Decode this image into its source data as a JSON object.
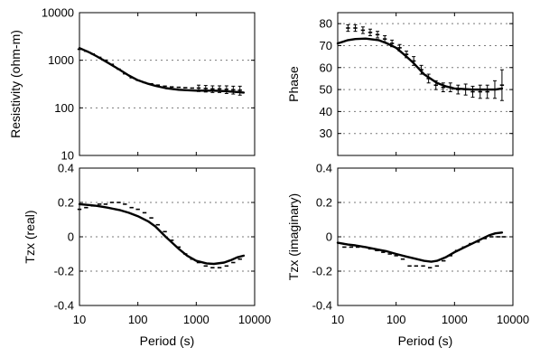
{
  "chart_data": [
    {
      "id": "resistivity",
      "type": "line",
      "ylabel": "Resistivity (ohm-m)",
      "xlabel": "",
      "xscale": "log",
      "yscale": "log",
      "xlim": [
        10,
        10000
      ],
      "ylim": [
        10,
        10000
      ],
      "yticks": [
        10,
        100,
        1000,
        10000
      ],
      "ytick_labels": [
        "10",
        "100",
        "1000",
        "10000"
      ],
      "xticks": [
        10,
        100,
        1000,
        10000
      ],
      "xtick_labels": [],
      "grid": "horizontal dotted",
      "model": {
        "x": [
          10,
          15,
          20,
          30,
          50,
          70,
          100,
          150,
          200,
          300,
          500,
          700,
          1000,
          2000,
          3000,
          5000,
          6500
        ],
        "y": [
          1800,
          1450,
          1200,
          900,
          620,
          480,
          380,
          320,
          290,
          260,
          240,
          235,
          230,
          230,
          225,
          215,
          210
        ]
      },
      "data": {
        "x": [
          10,
          13,
          17,
          22,
          28,
          36,
          47,
          60,
          78,
          100,
          130,
          170,
          220,
          290,
          380,
          500,
          650,
          850,
          1100,
          1450,
          1900,
          2500,
          3300,
          4300,
          5600
        ],
        "y": [
          1700,
          1550,
          1350,
          1150,
          1000,
          820,
          650,
          520,
          430,
          380,
          340,
          320,
          300,
          285,
          275,
          270,
          265,
          260,
          260,
          255,
          250,
          250,
          245,
          240,
          235
        ],
        "err": [
          0,
          0,
          0,
          0,
          0,
          0,
          0,
          0,
          0,
          0,
          0,
          0,
          0,
          0,
          0,
          0,
          0,
          0,
          40,
          40,
          40,
          40,
          45,
          45,
          50
        ]
      }
    },
    {
      "id": "phase",
      "type": "line",
      "ylabel": "Phase",
      "xlabel": "",
      "xscale": "log",
      "yscale": "linear",
      "xlim": [
        10,
        10000
      ],
      "ylim": [
        20,
        85
      ],
      "yticks": [
        30,
        40,
        50,
        60,
        70,
        80
      ],
      "ytick_labels": [
        "30",
        "40",
        "50",
        "60",
        "70",
        "80"
      ],
      "xticks": [
        10,
        100,
        1000,
        10000
      ],
      "xtick_labels": [],
      "grid": "horizontal dotted",
      "model": {
        "x": [
          10,
          15,
          20,
          30,
          50,
          70,
          100,
          150,
          200,
          300,
          500,
          700,
          1000,
          2000,
          3000,
          5000,
          6500
        ],
        "y": [
          71,
          72.5,
          73,
          73.2,
          72.5,
          71,
          69,
          65,
          62,
          57,
          53,
          51.5,
          50.5,
          50,
          50,
          50,
          50.5
        ]
      },
      "data": {
        "x": [
          15,
          20,
          27,
          36,
          48,
          64,
          85,
          115,
          150,
          200,
          270,
          360,
          480,
          640,
          850,
          1150,
          1550,
          2050,
          2750,
          3650,
          4900,
          6500
        ],
        "y": [
          78,
          78,
          77,
          76,
          75,
          73,
          71,
          69,
          66,
          63,
          59,
          55,
          52,
          51,
          51,
          50,
          50,
          49,
          49,
          49,
          50,
          52
        ],
        "err": [
          1.5,
          1.5,
          1.5,
          1.5,
          1.5,
          1.5,
          1.5,
          1.5,
          1.5,
          2,
          2,
          2,
          2,
          2,
          2,
          2,
          2.5,
          2.5,
          3,
          3,
          4,
          7
        ]
      }
    },
    {
      "id": "tzx-real",
      "type": "line",
      "ylabel": "Tzx (real)",
      "xlabel": "Period (s)",
      "xscale": "log",
      "yscale": "linear",
      "xlim": [
        10,
        10000
      ],
      "ylim": [
        -0.4,
        0.4
      ],
      "yticks": [
        -0.4,
        -0.2,
        0,
        0.2,
        0.4
      ],
      "ytick_labels": [
        "-0.4",
        "-0.2",
        "0",
        "0.2",
        "0.4"
      ],
      "xticks": [
        10,
        100,
        1000,
        10000
      ],
      "xtick_labels": [
        "10",
        "100",
        "1000",
        "10000"
      ],
      "grid": "horizontal dotted",
      "model": {
        "x": [
          10,
          15,
          20,
          30,
          50,
          70,
          100,
          150,
          200,
          300,
          500,
          700,
          1000,
          1500,
          2000,
          3000,
          4000,
          5000,
          6500
        ],
        "y": [
          0.19,
          0.185,
          0.18,
          0.17,
          0.155,
          0.14,
          0.12,
          0.09,
          0.06,
          0.0,
          -0.07,
          -0.11,
          -0.14,
          -0.155,
          -0.158,
          -0.15,
          -0.135,
          -0.12,
          -0.11
        ]
      },
      "data": {
        "x": [
          10,
          13,
          17,
          22,
          28,
          36,
          47,
          60,
          78,
          100,
          130,
          170,
          220,
          290,
          380,
          500,
          650,
          850,
          1100,
          1450,
          1900,
          2500,
          3300,
          4300,
          5600
        ],
        "y": [
          0.16,
          0.17,
          0.18,
          0.19,
          0.19,
          0.2,
          0.2,
          0.19,
          0.17,
          0.16,
          0.14,
          0.11,
          0.07,
          0.03,
          -0.02,
          -0.06,
          -0.1,
          -0.13,
          -0.15,
          -0.17,
          -0.18,
          -0.18,
          -0.17,
          -0.15,
          -0.13
        ]
      }
    },
    {
      "id": "tzx-imag",
      "type": "line",
      "ylabel": "Tzx (imaginary)",
      "xlabel": "Period (s)",
      "xscale": "log",
      "yscale": "linear",
      "xlim": [
        10,
        10000
      ],
      "ylim": [
        -0.4,
        0.4
      ],
      "yticks": [
        -0.4,
        -0.2,
        0,
        0.2,
        0.4
      ],
      "ytick_labels": [
        "-0.4",
        "-0.2",
        "0",
        "0.2",
        "0.4"
      ],
      "xticks": [
        10,
        100,
        1000,
        10000
      ],
      "xtick_labels": [
        "10",
        "100",
        "1000",
        "10000"
      ],
      "grid": "horizontal dotted",
      "model": {
        "x": [
          10,
          15,
          20,
          30,
          50,
          70,
          100,
          150,
          200,
          300,
          400,
          500,
          700,
          1000,
          1500,
          2000,
          3000,
          4000,
          5000,
          6500
        ],
        "y": [
          -0.035,
          -0.045,
          -0.05,
          -0.06,
          -0.075,
          -0.085,
          -0.1,
          -0.115,
          -0.125,
          -0.14,
          -0.145,
          -0.14,
          -0.12,
          -0.09,
          -0.06,
          -0.04,
          -0.01,
          0.01,
          0.02,
          0.025
        ]
      },
      "data": {
        "x": [
          13,
          17,
          22,
          28,
          36,
          47,
          60,
          78,
          100,
          130,
          170,
          220,
          290,
          380,
          500,
          650,
          850,
          1100,
          1450,
          1900,
          2500,
          3300,
          4300,
          5600,
          7000
        ],
        "y": [
          -0.06,
          -0.06,
          -0.06,
          -0.06,
          -0.07,
          -0.08,
          -0.09,
          -0.1,
          -0.11,
          -0.13,
          -0.17,
          -0.17,
          -0.17,
          -0.18,
          -0.17,
          -0.14,
          -0.11,
          -0.08,
          -0.06,
          -0.04,
          -0.03,
          -0.01,
          0.0,
          0.0,
          0.0
        ]
      }
    }
  ]
}
